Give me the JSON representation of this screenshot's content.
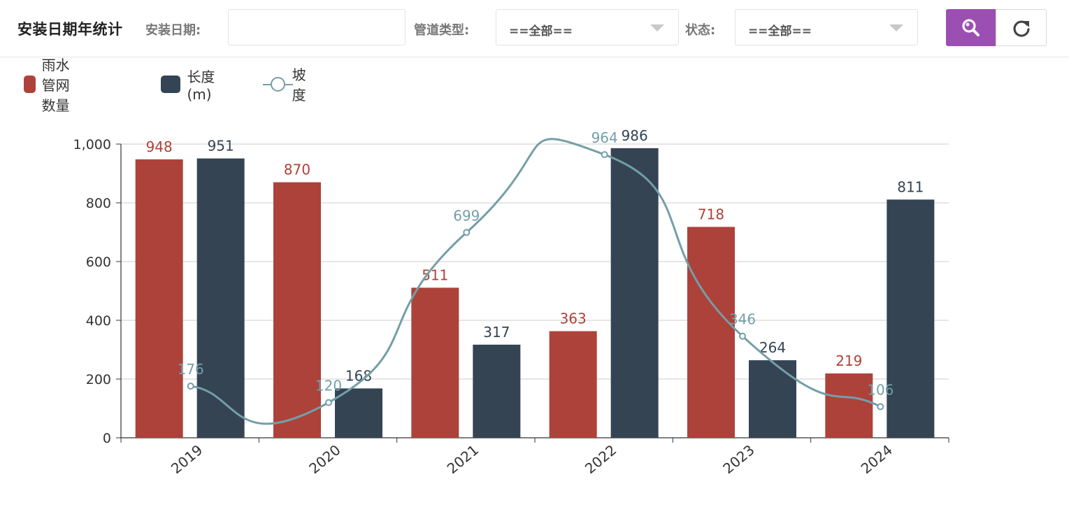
{
  "toolbar": {
    "title": "安装日期年统计",
    "date_label": "安装日期:",
    "date_value": "",
    "pipe_type_label": "管道类型:",
    "pipe_type_value": "==全部==",
    "status_label": "状态:",
    "status_value": "==全部==",
    "search_icon": "search-icon",
    "reset_icon": "refresh-icon"
  },
  "colors": {
    "accent": "#9c4fb2",
    "series_count": "#ad423a",
    "series_length": "#344453",
    "series_slope": "#749ea8"
  },
  "chart_data": {
    "type": "bar",
    "categories": [
      "2019",
      "2020",
      "2021",
      "2022",
      "2023",
      "2024"
    ],
    "series": [
      {
        "name": "雨水管网数量",
        "type": "bar",
        "values": [
          948,
          870,
          511,
          363,
          718,
          219
        ]
      },
      {
        "name": "长度(m)",
        "type": "bar",
        "values": [
          951,
          168,
          317,
          986,
          264,
          811
        ]
      },
      {
        "name": "坡度",
        "type": "line",
        "smooth": true,
        "values": [
          176,
          120,
          699,
          964,
          346,
          106
        ]
      }
    ],
    "ylim": [
      0,
      1000
    ],
    "yticks": [
      "0",
      "200",
      "400",
      "600",
      "800",
      "1,000"
    ],
    "ytick_values": [
      0,
      200,
      400,
      600,
      800,
      1000
    ],
    "grid": true,
    "legend_position": "top-left"
  }
}
